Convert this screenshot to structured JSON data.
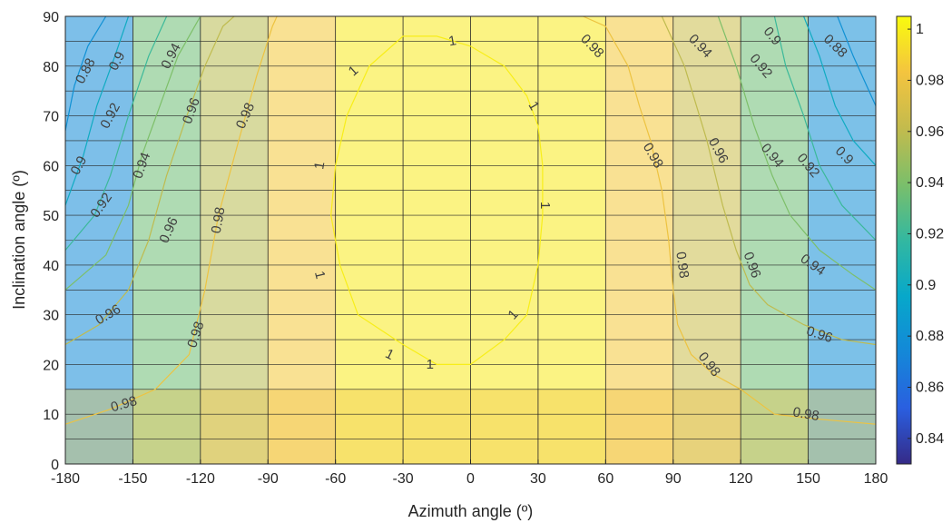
{
  "chart_data": {
    "type": "heatmap",
    "subtype": "filled-contour with contour lines and labels",
    "title": "",
    "xlabel": "Azimuth angle (º)",
    "ylabel": "Inclination angle (º)",
    "xlim": [
      -180,
      180
    ],
    "ylim": [
      0,
      90
    ],
    "xticks": [
      "-180",
      "-150",
      "-120",
      "-90",
      "-60",
      "-30",
      "0",
      "30",
      "60",
      "90",
      "120",
      "150",
      "180"
    ],
    "yticks": [
      "0",
      "10",
      "20",
      "30",
      "40",
      "50",
      "60",
      "70",
      "80",
      "90"
    ],
    "grid": true,
    "colorbar": {
      "colormap": "parula",
      "clim": [
        0.83,
        1.005
      ],
      "ticks": [
        "0.84",
        "0.86",
        "0.88",
        "0.9",
        "0.92",
        "0.94",
        "0.96",
        "0.98",
        "1"
      ],
      "placement": "right"
    },
    "levels": [
      0.88,
      0.9,
      0.92,
      0.94,
      0.96,
      0.98,
      1.0
    ],
    "level_labels": [
      "0.88",
      "0.9",
      "0.92",
      "0.94",
      "0.96",
      "0.98",
      "1"
    ],
    "azimuth_zones": [
      {
        "range": [
          -180,
          -150
        ],
        "value": 0.875
      },
      {
        "range": [
          -150,
          -120
        ],
        "value": 0.935
      },
      {
        "range": [
          -120,
          -90
        ],
        "value": 0.958
      },
      {
        "range": [
          -90,
          -60
        ],
        "value": 0.985
      },
      {
        "range": [
          -60,
          60
        ],
        "value": 0.998
      },
      {
        "range": [
          60,
          90
        ],
        "value": 0.985
      },
      {
        "range": [
          90,
          120
        ],
        "value": 0.965
      },
      {
        "range": [
          120,
          150
        ],
        "value": 0.935
      },
      {
        "range": [
          150,
          180
        ],
        "value": 0.878
      }
    ],
    "inclination_band_value": 0.982,
    "contours": [
      {
        "level": 1.0,
        "points": [
          [
            -50,
            30
          ],
          [
            -58,
            40
          ],
          [
            -62,
            50
          ],
          [
            -60,
            60
          ],
          [
            -55,
            70
          ],
          [
            -45,
            80
          ],
          [
            -30,
            86
          ],
          [
            -15,
            86
          ],
          [
            0,
            84
          ],
          [
            15,
            80
          ],
          [
            25,
            74
          ],
          [
            30,
            68
          ],
          [
            32,
            60
          ],
          [
            32,
            50
          ],
          [
            30,
            40
          ],
          [
            25,
            30
          ],
          [
            15,
            25
          ],
          [
            0,
            20
          ],
          [
            -15,
            20
          ],
          [
            -30,
            24
          ],
          [
            -50,
            30
          ]
        ]
      },
      {
        "level": 0.98,
        "points": [
          [
            -180,
            8
          ],
          [
            -160,
            11
          ],
          [
            -140,
            15
          ],
          [
            -125,
            22
          ],
          [
            -118,
            35
          ],
          [
            -112,
            50
          ],
          [
            -103,
            65
          ],
          [
            -95,
            78
          ],
          [
            -88,
            88
          ],
          [
            -86,
            90
          ]
        ]
      },
      {
        "level": 0.98,
        "points": [
          [
            50,
            90
          ],
          [
            60,
            88
          ],
          [
            70,
            80
          ],
          [
            75,
            72
          ],
          [
            80,
            65
          ],
          [
            85,
            55
          ],
          [
            88,
            45
          ],
          [
            90,
            35
          ],
          [
            92,
            28
          ],
          [
            98,
            22
          ],
          [
            108,
            18
          ],
          [
            120,
            15
          ],
          [
            135,
            10
          ],
          [
            155,
            9
          ],
          [
            180,
            8
          ]
        ]
      },
      {
        "level": 0.96,
        "points": [
          [
            -180,
            24
          ],
          [
            -165,
            28
          ],
          [
            -152,
            35
          ],
          [
            -143,
            45
          ],
          [
            -135,
            58
          ],
          [
            -126,
            70
          ],
          [
            -118,
            80
          ],
          [
            -110,
            88
          ],
          [
            -105,
            90
          ]
        ]
      },
      {
        "level": 0.96,
        "points": [
          [
            85,
            90
          ],
          [
            95,
            80
          ],
          [
            105,
            65
          ],
          [
            112,
            52
          ],
          [
            118,
            43
          ],
          [
            124,
            36
          ],
          [
            132,
            32
          ],
          [
            148,
            28
          ],
          [
            165,
            25
          ],
          [
            180,
            24
          ]
        ]
      },
      {
        "level": 0.94,
        "points": [
          [
            -180,
            35
          ],
          [
            -162,
            42
          ],
          [
            -152,
            52
          ],
          [
            -146,
            62
          ],
          [
            -138,
            72
          ],
          [
            -130,
            82
          ],
          [
            -120,
            90
          ]
        ]
      },
      {
        "level": 0.94,
        "points": [
          [
            110,
            90
          ],
          [
            118,
            80
          ],
          [
            126,
            68
          ],
          [
            134,
            58
          ],
          [
            142,
            50
          ],
          [
            155,
            43
          ],
          [
            170,
            38
          ],
          [
            180,
            35
          ]
        ]
      },
      {
        "level": 0.92,
        "points": [
          [
            -180,
            43
          ],
          [
            -167,
            50
          ],
          [
            -160,
            58
          ],
          [
            -152,
            70
          ],
          [
            -143,
            82
          ],
          [
            -135,
            90
          ]
        ]
      },
      {
        "level": 0.92,
        "points": [
          [
            135,
            90
          ],
          [
            140,
            80
          ],
          [
            148,
            70
          ],
          [
            155,
            60
          ],
          [
            165,
            52
          ],
          [
            180,
            45
          ]
        ]
      },
      {
        "level": 0.9,
        "points": [
          [
            -180,
            52
          ],
          [
            -172,
            62
          ],
          [
            -166,
            72
          ],
          [
            -158,
            82
          ],
          [
            -152,
            90
          ]
        ]
      },
      {
        "level": 0.9,
        "points": [
          [
            148,
            90
          ],
          [
            155,
            82
          ],
          [
            162,
            72
          ],
          [
            170,
            65
          ],
          [
            180,
            60
          ]
        ]
      },
      {
        "level": 0.88,
        "points": [
          [
            -180,
            67
          ],
          [
            -176,
            76
          ],
          [
            -170,
            84
          ],
          [
            -162,
            90
          ]
        ]
      },
      {
        "level": 0.88,
        "points": [
          [
            163,
            90
          ],
          [
            170,
            82
          ],
          [
            176,
            76
          ],
          [
            180,
            72
          ]
        ]
      }
    ],
    "contour_labels": [
      {
        "text": "0.88",
        "x": -171,
        "y": 79,
        "angle": -62
      },
      {
        "text": "0.9",
        "x": -157,
        "y": 81,
        "angle": -62
      },
      {
        "text": "0.94",
        "x": -133,
        "y": 82,
        "angle": -62
      },
      {
        "text": "0.92",
        "x": -160,
        "y": 70,
        "angle": -62
      },
      {
        "text": "0.96",
        "x": -124,
        "y": 71,
        "angle": -70
      },
      {
        "text": "0.98",
        "x": -100,
        "y": 70,
        "angle": -66
      },
      {
        "text": "0.9",
        "x": -174,
        "y": 60,
        "angle": -62
      },
      {
        "text": "0.94",
        "x": -146,
        "y": 60,
        "angle": -70
      },
      {
        "text": "0.92",
        "x": -164,
        "y": 52,
        "angle": -55
      },
      {
        "text": "0.96",
        "x": -134,
        "y": 47,
        "angle": -66
      },
      {
        "text": "0.98",
        "x": -112,
        "y": 49,
        "angle": -80
      },
      {
        "text": "0.96",
        "x": -161,
        "y": 30,
        "angle": -30
      },
      {
        "text": "0.98",
        "x": -122,
        "y": 26,
        "angle": -72
      },
      {
        "text": "0.98",
        "x": -154,
        "y": 12,
        "angle": -16
      },
      {
        "text": "1",
        "x": -52,
        "y": 79,
        "angle": -42
      },
      {
        "text": "1",
        "x": -8,
        "y": 85,
        "angle": -10
      },
      {
        "text": "1",
        "x": 28,
        "y": 72,
        "angle": 60
      },
      {
        "text": "1",
        "x": -67,
        "y": 60,
        "angle": -80
      },
      {
        "text": "1",
        "x": 33,
        "y": 52,
        "angle": 90
      },
      {
        "text": "1",
        "x": -67,
        "y": 38,
        "angle": 76
      },
      {
        "text": "1",
        "x": 19,
        "y": 30,
        "angle": -48
      },
      {
        "text": "1",
        "x": -36,
        "y": 22,
        "angle": 26
      },
      {
        "text": "1",
        "x": -18,
        "y": 20,
        "angle": 0
      },
      {
        "text": "0.98",
        "x": 54,
        "y": 84,
        "angle": 46
      },
      {
        "text": "0.94",
        "x": 102,
        "y": 84,
        "angle": 46
      },
      {
        "text": "0.9",
        "x": 134,
        "y": 86,
        "angle": 50
      },
      {
        "text": "0.88",
        "x": 162,
        "y": 84,
        "angle": 44
      },
      {
        "text": "0.92",
        "x": 129,
        "y": 80,
        "angle": 50
      },
      {
        "text": "0.98",
        "x": 81,
        "y": 62,
        "angle": 60
      },
      {
        "text": "0.96",
        "x": 110,
        "y": 63,
        "angle": 62
      },
      {
        "text": "0.94",
        "x": 134,
        "y": 62,
        "angle": 50
      },
      {
        "text": "0.9",
        "x": 166,
        "y": 62,
        "angle": 46
      },
      {
        "text": "0.92",
        "x": 150,
        "y": 60,
        "angle": 50
      },
      {
        "text": "0.98",
        "x": 94,
        "y": 40,
        "angle": 82
      },
      {
        "text": "0.96",
        "x": 125,
        "y": 40,
        "angle": 70
      },
      {
        "text": "0.94",
        "x": 152,
        "y": 40,
        "angle": 35
      },
      {
        "text": "0.96",
        "x": 155,
        "y": 26,
        "angle": 18
      },
      {
        "text": "0.98",
        "x": 106,
        "y": 20,
        "angle": 52
      },
      {
        "text": "0.98",
        "x": 149,
        "y": 10,
        "angle": 10
      }
    ]
  }
}
